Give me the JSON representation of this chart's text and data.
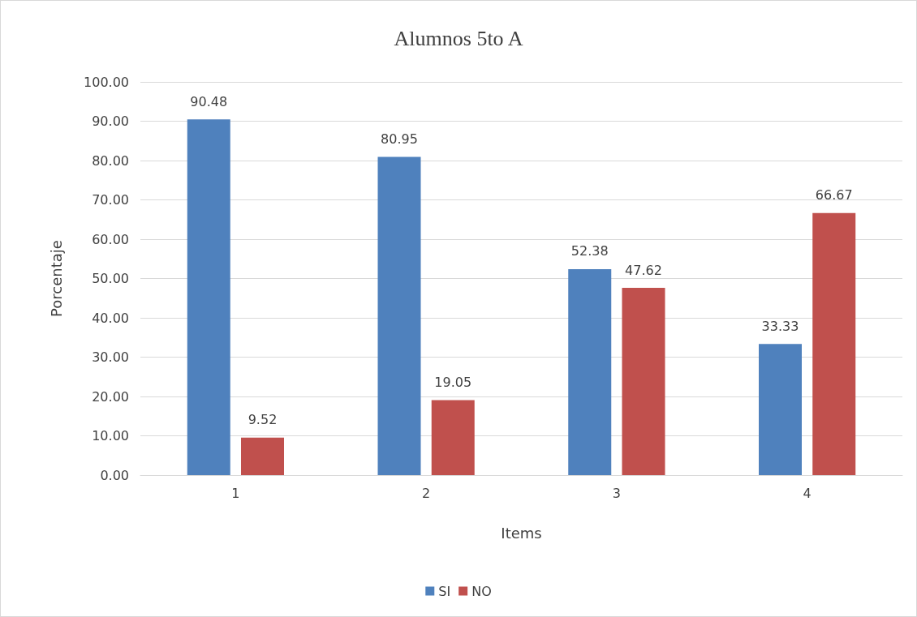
{
  "chart_data": {
    "type": "bar",
    "title": "Alumnos 5to A",
    "xlabel": "Items",
    "ylabel": "Porcentaje",
    "categories": [
      "1",
      "2",
      "3",
      "4"
    ],
    "series": [
      {
        "name": "SI",
        "color": "#4f81bd",
        "values": [
          90.48,
          80.95,
          52.38,
          33.33
        ]
      },
      {
        "name": "NO",
        "color": "#c0504d",
        "values": [
          9.52,
          19.05,
          47.62,
          66.67
        ]
      }
    ],
    "ylim": [
      0,
      100
    ],
    "yticks": [
      {
        "value": 0,
        "label": "0.00"
      },
      {
        "value": 10,
        "label": "10.00"
      },
      {
        "value": 20,
        "label": "20.00"
      },
      {
        "value": 30,
        "label": "30.00"
      },
      {
        "value": 40,
        "label": "40.00"
      },
      {
        "value": 50,
        "label": "50.00"
      },
      {
        "value": 60,
        "label": "60.00"
      },
      {
        "value": 70,
        "label": "70.00"
      },
      {
        "value": 80,
        "label": "80.00"
      },
      {
        "value": 90,
        "label": "90.00"
      },
      {
        "value": 100,
        "label": "100.00"
      }
    ],
    "grid": "y",
    "legend": "bottom",
    "data_labels": true
  }
}
